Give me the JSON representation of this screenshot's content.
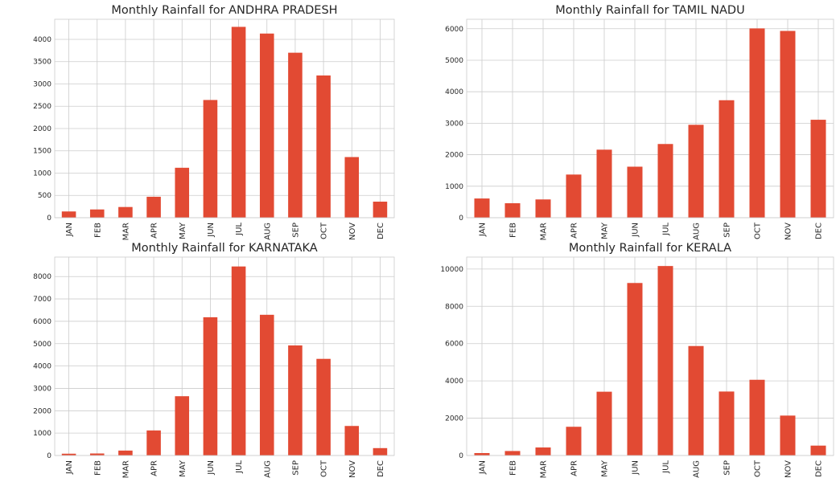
{
  "colors": {
    "bar": "#e24a33",
    "grid": "#cccccc",
    "frame": "#cccccc",
    "text": "#262626"
  },
  "chart_data": [
    {
      "type": "bar",
      "title": "Monthly Rainfall for ANDHRA PRADESH",
      "categories": [
        "JAN",
        "FEB",
        "MAR",
        "APR",
        "MAY",
        "JUN",
        "JUL",
        "AUG",
        "SEP",
        "OCT",
        "NOV",
        "DEC"
      ],
      "values": [
        140,
        185,
        240,
        470,
        1120,
        2640,
        4280,
        4130,
        3700,
        3190,
        1360,
        360
      ],
      "ylim": [
        0,
        4450
      ],
      "yticks": [
        0,
        500,
        1000,
        1500,
        2000,
        2500,
        3000,
        3500,
        4000
      ],
      "xlabel": "",
      "ylabel": "",
      "grid": true
    },
    {
      "type": "bar",
      "title": "Monthly Rainfall for TAMIL NADU",
      "categories": [
        "JAN",
        "FEB",
        "MAR",
        "APR",
        "MAY",
        "JUN",
        "JUL",
        "AUG",
        "SEP",
        "OCT",
        "NOV",
        "DEC"
      ],
      "values": [
        610,
        460,
        580,
        1370,
        2160,
        1620,
        2340,
        2950,
        3730,
        6010,
        5930,
        3110
      ],
      "ylim": [
        0,
        6300
      ],
      "yticks": [
        0,
        1000,
        2000,
        3000,
        4000,
        5000,
        6000
      ],
      "xlabel": "",
      "ylabel": "",
      "grid": true
    },
    {
      "type": "bar",
      "title": "Monthly Rainfall for KARNATAKA",
      "categories": [
        "JAN",
        "FEB",
        "MAR",
        "APR",
        "MAY",
        "JUN",
        "JUL",
        "AUG",
        "SEP",
        "OCT",
        "NOV",
        "DEC"
      ],
      "values": [
        80,
        90,
        220,
        1120,
        2650,
        6180,
        8450,
        6290,
        4920,
        4320,
        1320,
        330
      ],
      "ylim": [
        0,
        8870
      ],
      "yticks": [
        0,
        1000,
        2000,
        3000,
        4000,
        5000,
        6000,
        7000,
        8000
      ],
      "xlabel": "",
      "ylabel": "",
      "grid": true
    },
    {
      "type": "bar",
      "title": "Monthly Rainfall for KERALA",
      "categories": [
        "JAN",
        "FEB",
        "MAR",
        "APR",
        "MAY",
        "JUN",
        "JUL",
        "AUG",
        "SEP",
        "OCT",
        "NOV",
        "DEC"
      ],
      "values": [
        130,
        240,
        430,
        1540,
        3420,
        9250,
        10160,
        5870,
        3430,
        4060,
        2140,
        530
      ],
      "ylim": [
        0,
        10640
      ],
      "yticks": [
        0,
        2000,
        4000,
        6000,
        8000,
        10000
      ],
      "xlabel": "",
      "ylabel": "",
      "grid": true
    }
  ]
}
